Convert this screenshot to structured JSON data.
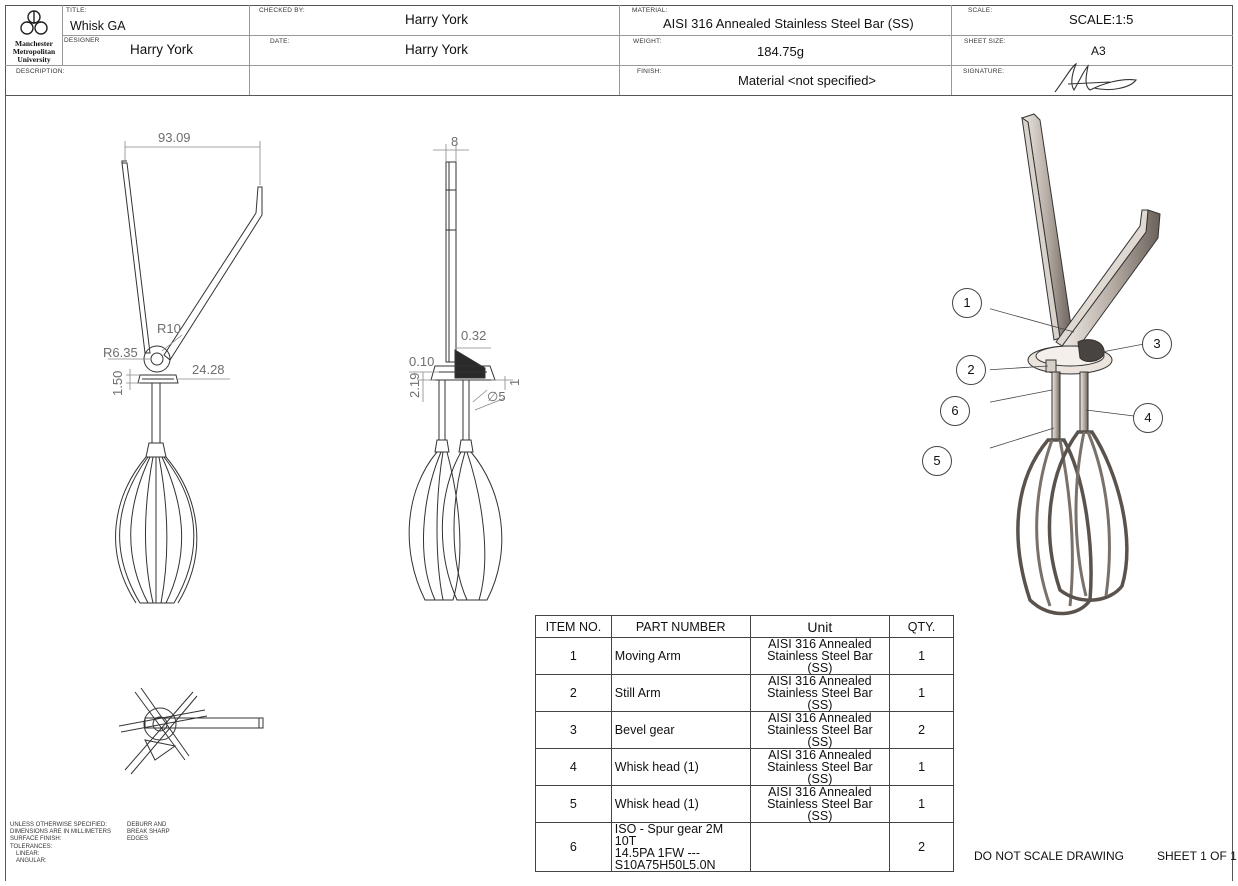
{
  "title_block": {
    "logo_text": "Manchester Metropolitan University",
    "title_label": "TITLE:",
    "title": "Whisk GA",
    "designer_label": "DESIGNER",
    "designer": "Harry York",
    "description_label": "DESCRIPTION:",
    "checked_label": "CHECKED BY:",
    "checked_by": "Harry York",
    "date_label": "DATE:",
    "date": "Harry York",
    "material_label": "MATERIAL:",
    "material": "AISI 316 Annealed Stainless Steel Bar (SS)",
    "weight_label": "WEIGHT:",
    "weight": "184.75g",
    "finish_label": "FINISH:",
    "finish": "Material <not specified>",
    "scale_label": "SCALE:",
    "scale": "SCALE:1:5",
    "sheet_size_label": "SHEET SIZE:",
    "sheet_size": "A3",
    "signature_label": "SIGNATURE:"
  },
  "dimensions": {
    "front": {
      "width": "93.09",
      "r10": "R10",
      "r635": "R6.35",
      "d150": "1.50",
      "d2428": "24.28"
    },
    "side": {
      "width": "8",
      "d032": "0.32",
      "d010": "0.10",
      "d219": "2.19",
      "d1": "1",
      "dia5": "∅5"
    }
  },
  "bom": {
    "headers": [
      "ITEM NO.",
      "PART NUMBER",
      "Unit",
      "QTY."
    ],
    "rows": [
      {
        "item": "1",
        "part": "Moving Arm",
        "unit_line1": "AISI 316 Annealed",
        "unit_line2": "Stainless Steel Bar (SS)",
        "qty": "1"
      },
      {
        "item": "2",
        "part": "Still Arm",
        "unit_line1": "AISI 316 Annealed",
        "unit_line2": "Stainless Steel Bar (SS)",
        "qty": "1"
      },
      {
        "item": "3",
        "part": "Bevel gear",
        "unit_line1": "AISI 316 Annealed",
        "unit_line2": "Stainless Steel Bar (SS)",
        "qty": "2"
      },
      {
        "item": "4",
        "part": "Whisk head (1)",
        "unit_line1": "AISI 316 Annealed",
        "unit_line2": "Stainless Steel Bar (SS)",
        "qty": "1"
      },
      {
        "item": "5",
        "part": "Whisk head (1)",
        "unit_line1": "AISI 316 Annealed",
        "unit_line2": "Stainless Steel Bar (SS)",
        "qty": "1"
      },
      {
        "item": "6",
        "part_line1": "ISO - Spur gear 2M 10T",
        "part_line2": "14.5PA 1FW ---",
        "part_line3": "S10A75H50L5.0N",
        "unit_line1": "",
        "unit_line2": "",
        "qty": "2"
      }
    ]
  },
  "balloons": [
    "1",
    "2",
    "3",
    "4",
    "5",
    "6"
  ],
  "footer": {
    "notes": [
      "UNLESS OTHERWISE SPECIFIED:",
      "DIMENSIONS ARE IN MILLIMETERS",
      "SURFACE FINISH:",
      "TOLERANCES:",
      "LINEAR:",
      "ANGULAR:"
    ],
    "deburr": [
      "DEBURR AND",
      "BREAK SHARP",
      "EDGES"
    ],
    "do_not_scale": "DO NOT SCALE DRAWING",
    "sheet": "SHEET 1 OF 1"
  },
  "colors": {
    "line": "#444444",
    "dimension": "#6e6e6e",
    "steel_light": "#e8e2dc",
    "steel_dark": "#6a615a"
  }
}
